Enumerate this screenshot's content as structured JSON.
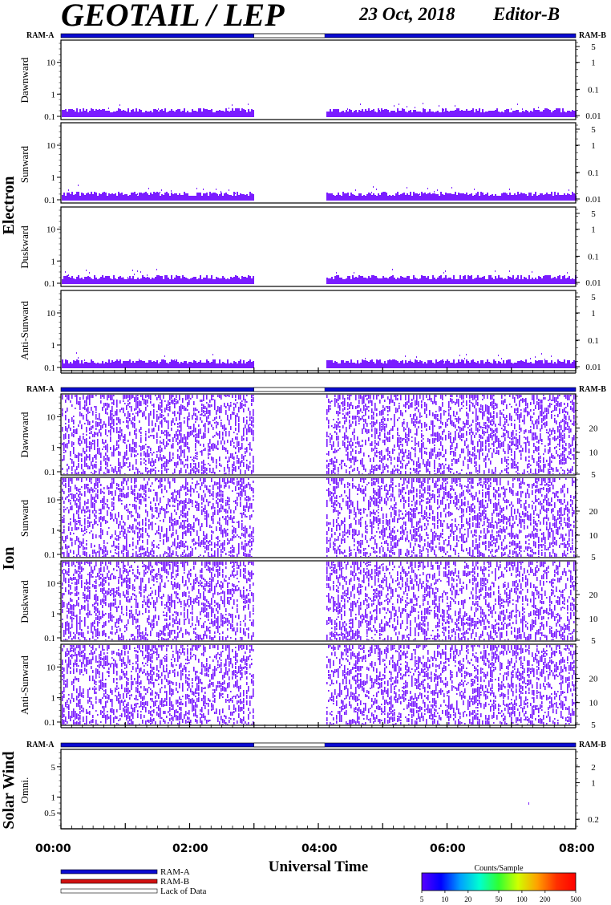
{
  "header": {
    "title": "GEOTAIL / LEP",
    "date": "23 Oct, 2018",
    "editor": "Editor-B"
  },
  "colors": {
    "ram_a": "#0a0ad0",
    "ram_b": "#d01010",
    "data": "#7a1cff",
    "frame": "#000000"
  },
  "legend": {
    "ram_a": "RAM-A",
    "ram_b": "RAM-B",
    "lack": "Lack of Data"
  },
  "colorbar": {
    "title": "Counts/Sample",
    "ticks": [
      "5",
      "10",
      "20",
      "50",
      "100",
      "200",
      "500"
    ],
    "colors": [
      "#5a00ff",
      "#0000ff",
      "#00a0ff",
      "#00ffd0",
      "#30ff30",
      "#d0ff00",
      "#ffa000",
      "#ff3000",
      "#ff0000"
    ]
  },
  "chart_data": {
    "type": "heatmap",
    "xlabel": "Universal Time",
    "x_ticks": [
      "00:00",
      "02:00",
      "04:00",
      "06:00",
      "08:00"
    ],
    "x_range_hours": [
      0,
      8
    ],
    "data_gap_hours": [
      3.0,
      4.1
    ],
    "groups": [
      {
        "name": "Electron",
        "mode_left": "RAM-A",
        "mode_right": "RAM-B",
        "panels": [
          {
            "label": "Dawnward",
            "left_ticks": [
              "10",
              "1",
              "0.1"
            ],
            "right_ticks": [
              "5",
              "1",
              "0.1",
              "0.01"
            ]
          },
          {
            "label": "Sunward",
            "left_ticks": [
              "10",
              "1",
              "0.1"
            ],
            "right_ticks": [
              "5",
              "1",
              "0.1",
              "0.01"
            ]
          },
          {
            "label": "Duskward",
            "left_ticks": [
              "10",
              "1",
              "0.1"
            ],
            "right_ticks": [
              "5",
              "1",
              "0.1",
              "0.01"
            ]
          },
          {
            "label": "Anti-Sunward",
            "left_ticks": [
              "10",
              "1",
              "0.1"
            ],
            "right_ticks": [
              "5",
              "1",
              "0.1",
              "0.01"
            ]
          }
        ]
      },
      {
        "name": "Ion",
        "mode_left": "RAM-A",
        "mode_right": "RAM-B",
        "panels": [
          {
            "label": "Dawnward",
            "left_ticks": [
              "10",
              "1",
              "0.1"
            ],
            "right_ticks": [
              "20",
              "10",
              "5"
            ]
          },
          {
            "label": "Sunward",
            "left_ticks": [
              "10",
              "1",
              "0.1"
            ],
            "right_ticks": [
              "20",
              "10",
              "5"
            ]
          },
          {
            "label": "Duskward",
            "left_ticks": [
              "10",
              "1",
              "0.1"
            ],
            "right_ticks": [
              "20",
              "10",
              "5"
            ]
          },
          {
            "label": "Anti-Sunward",
            "left_ticks": [
              "10",
              "1",
              "0.1"
            ],
            "right_ticks": [
              "20",
              "10",
              "5"
            ]
          }
        ]
      },
      {
        "name": "Solar Wind",
        "mode_left": "RAM-A",
        "mode_right": "RAM-B",
        "panels": [
          {
            "label": "Omni.",
            "left_ticks": [
              "5",
              "1",
              "0.5"
            ],
            "right_ticks": [
              "2",
              "1",
              "0.2"
            ]
          }
        ]
      }
    ]
  }
}
